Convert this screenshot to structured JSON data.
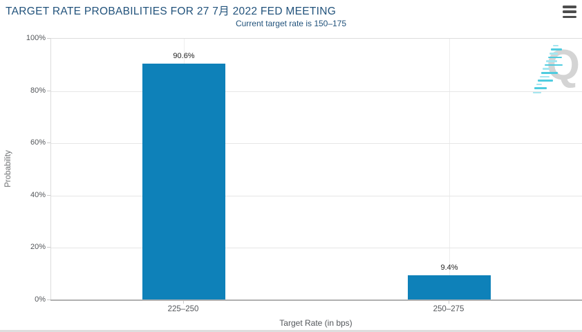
{
  "header": {
    "title": "TARGET RATE PROBABILITIES FOR 27 7月 2022 FED MEETING",
    "subtitle": "Current target rate is 150–175",
    "menu_icon": "hamburger-menu-icon"
  },
  "watermark": {
    "letter": "Q"
  },
  "colors": {
    "bar": "#0e81b9",
    "title_text": "#21527b",
    "axis_text": "#53565a",
    "gridline": "#e6e6e6",
    "axis_line": "#b0b0b0",
    "watermark_gray": "#d4d4d4",
    "watermark_teal_light": "#a5e6f0",
    "watermark_teal_dark": "#4fccdf"
  },
  "chart_data": {
    "type": "bar",
    "title": "TARGET RATE PROBABILITIES FOR 27 7月 2022 FED MEETING",
    "subtitle": "Current target rate is 150–175",
    "categories": [
      "225–250",
      "250–275"
    ],
    "values": [
      90.6,
      9.4
    ],
    "data_labels": [
      "90.6%",
      "9.4%"
    ],
    "xlabel": "Target Rate (in bps)",
    "ylabel": "Probability",
    "ylim": [
      0,
      100
    ],
    "yticks": [
      0,
      20,
      40,
      60,
      80,
      100
    ],
    "ytick_labels": [
      "0%",
      "20%",
      "40%",
      "60%",
      "80%",
      "100%"
    ],
    "grid": true,
    "legend": "none"
  }
}
